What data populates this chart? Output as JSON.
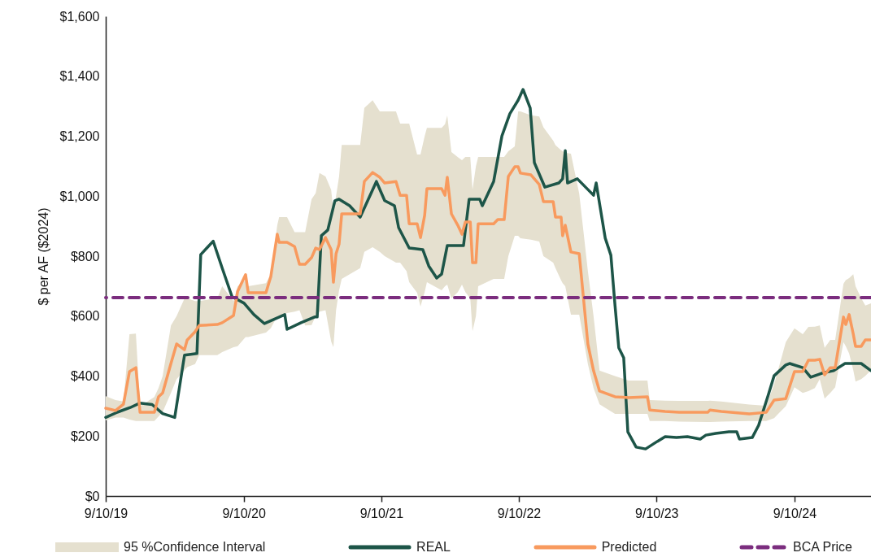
{
  "chart_data": {
    "type": "line",
    "ylabel": "$ per AF ($2024)",
    "legend": "bottom",
    "annotations": [
      "95 %Confidence Interval"
    ],
    "xlim": [
      "2019-09-10",
      "2025-04-01"
    ],
    "xticks": [
      {
        "value": "2019-09-10",
        "label": "9/10/19"
      },
      {
        "value": "2020-09-10",
        "label": "9/10/20"
      },
      {
        "value": "2021-09-10",
        "label": "9/10/21"
      },
      {
        "value": "2022-09-10",
        "label": "9/10/22"
      },
      {
        "value": "2023-09-10",
        "label": "9/10/23"
      },
      {
        "value": "2024-09-10",
        "label": "9/10/24"
      }
    ],
    "ylim": [
      0,
      1600
    ],
    "yticks": [
      {
        "value": 0,
        "label": "$0"
      },
      {
        "value": 200,
        "label": "$200"
      },
      {
        "value": 400,
        "label": "$400"
      },
      {
        "value": 600,
        "label": "$600"
      },
      {
        "value": 800,
        "label": "$800"
      },
      {
        "value": 1000,
        "label": "$1,000"
      },
      {
        "value": 1200,
        "label": "$1,200"
      },
      {
        "value": 1400,
        "label": "$1,400"
      },
      {
        "value": 1600,
        "label": "$1,600"
      }
    ],
    "ref_lines": [
      {
        "axis": "y",
        "value": 662,
        "label": "BCA Price",
        "color": "#7b2d7e",
        "line_style": "dashed"
      }
    ],
    "series": [
      {
        "name": "REAL",
        "color": "#1d5548",
        "x": [
          "2019-09-10",
          "2019-10-12",
          "2019-11-14",
          "2019-12-10",
          "2020-01-11",
          "2020-02-08",
          "2020-03-11",
          "2020-04-06",
          "2020-05-09",
          "2020-05-19",
          "2020-06-21",
          "2020-07-15",
          "2020-08-10",
          "2020-09-11",
          "2020-10-07",
          "2020-11-04",
          "2020-12-28",
          "2021-01-03",
          "2021-02-09",
          "2021-03-17",
          "2021-03-24",
          "2021-04-04",
          "2021-04-21",
          "2021-05-10",
          "2021-05-21",
          "2021-06-18",
          "2021-07-16",
          "2021-08-28",
          "2021-09-19",
          "2021-10-15",
          "2021-10-26",
          "2021-11-23",
          "2021-12-29",
          "2022-01-14",
          "2022-02-04",
          "2022-02-17",
          "2022-03-04",
          "2022-04-16",
          "2022-05-01",
          "2022-05-29",
          "2022-06-05",
          "2022-07-05",
          "2022-07-27",
          "2022-08-17",
          "2022-09-08",
          "2022-09-21",
          "2022-10-10",
          "2022-10-21",
          "2022-11-18",
          "2022-12-25",
          "2023-01-04",
          "2023-01-11",
          "2023-01-17",
          "2023-02-12",
          "2023-03-27",
          "2023-04-03",
          "2023-04-27",
          "2023-05-12",
          "2023-05-23",
          "2023-06-02",
          "2023-06-15",
          "2023-06-26",
          "2023-07-18",
          "2023-08-12",
          "2023-09-12",
          "2023-10-03",
          "2023-11-02",
          "2023-12-01",
          "2024-01-04",
          "2024-01-19",
          "2024-02-14",
          "2024-03-20",
          "2024-04-10",
          "2024-04-17",
          "2024-05-21",
          "2024-06-07",
          "2024-07-03",
          "2024-07-18",
          "2024-08-18",
          "2024-08-28",
          "2024-10-02",
          "2024-10-23",
          "2024-11-23",
          "2024-12-23",
          "2025-01-22",
          "2025-03-06",
          "2025-04-01"
        ],
        "values": [
          262,
          280,
          295,
          310,
          305,
          275,
          262,
          470,
          475,
          805,
          850,
          760,
          665,
          643,
          605,
          575,
          605,
          556,
          578,
          597,
          597,
          868,
          887,
          985,
          990,
          968,
          930,
          1049,
          985,
          968,
          895,
          827,
          822,
          767,
          727,
          740,
          835,
          835,
          990,
          990,
          968,
          1049,
          1201,
          1275,
          1320,
          1356,
          1294,
          1112,
          1030,
          1044,
          1058,
          1152,
          1044,
          1058,
          1003,
          1044,
          860,
          803,
          635,
          494,
          461,
          214,
          163,
          157,
          182,
          198,
          195,
          198,
          190,
          203,
          209,
          214,
          214,
          190,
          195,
          236,
          339,
          401,
          437,
          442,
          428,
          396,
          410,
          418,
          442,
          442,
          418
        ]
      },
      {
        "name": "Predicted",
        "color": "#f89a5e",
        "x": [
          "2019-09-10",
          "2019-10-06",
          "2019-10-27",
          "2019-11-12",
          "2019-11-29",
          "2019-12-10",
          "2020-01-17",
          "2020-01-28",
          "2020-02-08",
          "2020-03-01",
          "2020-03-16",
          "2020-04-06",
          "2020-04-13",
          "2020-05-04",
          "2020-05-15",
          "2020-07-02",
          "2020-07-15",
          "2020-08-14",
          "2020-08-25",
          "2020-09-15",
          "2020-09-22",
          "2020-11-08",
          "2020-11-21",
          "2020-12-08",
          "2020-12-13",
          "2021-01-03",
          "2021-01-23",
          "2021-02-05",
          "2021-02-20",
          "2021-03-09",
          "2021-03-20",
          "2021-03-30",
          "2021-04-15",
          "2021-04-30",
          "2021-05-06",
          "2021-05-13",
          "2021-05-21",
          "2021-05-28",
          "2021-07-16",
          "2021-07-27",
          "2021-08-18",
          "2021-09-06",
          "2021-09-19",
          "2021-10-19",
          "2021-10-30",
          "2021-11-16",
          "2021-11-23",
          "2021-12-14",
          "2021-12-23",
          "2022-01-03",
          "2022-01-09",
          "2022-02-17",
          "2022-02-26",
          "2022-03-04",
          "2022-03-15",
          "2022-04-01",
          "2022-04-12",
          "2022-04-21",
          "2022-05-04",
          "2022-05-10",
          "2022-05-19",
          "2022-05-25",
          "2022-07-05",
          "2022-07-16",
          "2022-08-02",
          "2022-08-13",
          "2022-08-30",
          "2022-09-08",
          "2022-09-14",
          "2022-10-12",
          "2022-11-03",
          "2022-11-14",
          "2022-12-10",
          "2022-12-16",
          "2022-12-31",
          "2023-01-04",
          "2023-01-11",
          "2023-01-26",
          "2023-02-17",
          "2023-03-12",
          "2023-03-27",
          "2023-04-12",
          "2023-05-23",
          "2023-06-28",
          "2023-08-17",
          "2023-08-23",
          "2023-10-03",
          "2023-11-09",
          "2024-01-24",
          "2024-01-30",
          "2024-02-29",
          "2024-05-13",
          "2024-06-27",
          "2024-07-18",
          "2024-08-18",
          "2024-09-10",
          "2024-10-02",
          "2024-10-17",
          "2024-11-03",
          "2024-11-16",
          "2024-11-29",
          "2024-12-14",
          "2024-12-27",
          "2025-01-18",
          "2025-01-24",
          "2025-02-02",
          "2025-02-13",
          "2025-02-19",
          "2025-03-06",
          "2025-03-17",
          "2025-04-01"
        ],
        "values": [
          293,
          285,
          306,
          415,
          428,
          279,
          279,
          331,
          344,
          442,
          507,
          488,
          520,
          548,
          569,
          572,
          578,
          602,
          683,
          738,
          678,
          678,
          732,
          873,
          846,
          846,
          832,
          773,
          773,
          795,
          827,
          822,
          862,
          822,
          713,
          808,
          840,
          941,
          941,
          1049,
          1079,
          1063,
          1044,
          1049,
          1003,
          1003,
          908,
          908,
          862,
          936,
          1025,
          1025,
          1003,
          1063,
          941,
          903,
          873,
          914,
          914,
          778,
          778,
          908,
          908,
          922,
          922,
          1066,
          1098,
          1098,
          1077,
          1071,
          1039,
          982,
          982,
          930,
          930,
          868,
          903,
          814,
          808,
          507,
          418,
          350,
          331,
          328,
          331,
          287,
          282,
          279,
          279,
          287,
          282,
          274,
          279,
          320,
          325,
          415,
          415,
          453,
          453,
          456,
          404,
          428,
          428,
          597,
          572,
          605,
          540,
          499,
          499,
          521,
          521
        ],
        "lower": [
          252,
          262,
          262,
          255,
          250,
          250,
          250,
          265,
          280,
          344,
          390,
          420,
          430,
          440,
          470,
          470,
          480,
          496,
          500,
          530,
          530,
          545,
          560,
          600,
          600,
          610,
          615,
          620,
          569,
          570,
          600,
          615,
          620,
          515,
          496,
          620,
          686,
          724,
          760,
          814,
          830,
          814,
          800,
          778,
          778,
          750,
          713,
          678,
          632,
          680,
          713,
          686,
          700,
          705,
          659,
          680,
          705,
          680,
          659,
          550,
          600,
          700,
          724,
          724,
          724,
          800,
          868,
          868,
          860,
          855,
          849,
          800,
          778,
          760,
          719,
          710,
          700,
          605,
          605,
          440,
          360,
          306,
          274,
          274,
          274,
          250,
          250,
          248,
          247,
          247,
          248,
          250,
          250,
          260,
          300,
          363,
          344,
          350,
          360,
          390,
          325,
          344,
          363,
          513,
          500,
          475,
          420,
          382,
          390,
          401,
          420
        ],
        "upper": [
          333,
          320,
          315,
          540,
          542,
          300,
          330,
          360,
          400,
          569,
          600,
          659,
          660,
          650,
          650,
          660,
          700,
          650,
          700,
          720,
          700,
          710,
          740,
          903,
          930,
          930,
          880,
          880,
          880,
          990,
          1010,
          1077,
          1066,
          1021,
          950,
          1000,
          1066,
          1171,
          1171,
          1294,
          1320,
          1283,
          1283,
          1283,
          1242,
          1242,
          1242,
          1139,
          1139,
          1200,
          1228,
          1228,
          1240,
          1269,
          1147,
          1130,
          1120,
          1131,
          1131,
          1022,
          1100,
          1131,
          1131,
          1131,
          1131,
          1150,
          1166,
          1283,
          1283,
          1270,
          1266,
          1230,
          1185,
          1170,
          1153,
          1150,
          1145,
          1142,
          1009,
          750,
          600,
          418,
          400,
          385,
          385,
          320,
          318,
          317,
          317,
          318,
          315,
          305,
          301,
          372,
          513,
          559,
          540,
          564,
          565,
          569,
          494,
          521,
          521,
          708,
          720,
          727,
          740,
          700,
          660,
          635,
          643
        ]
      }
    ]
  }
}
